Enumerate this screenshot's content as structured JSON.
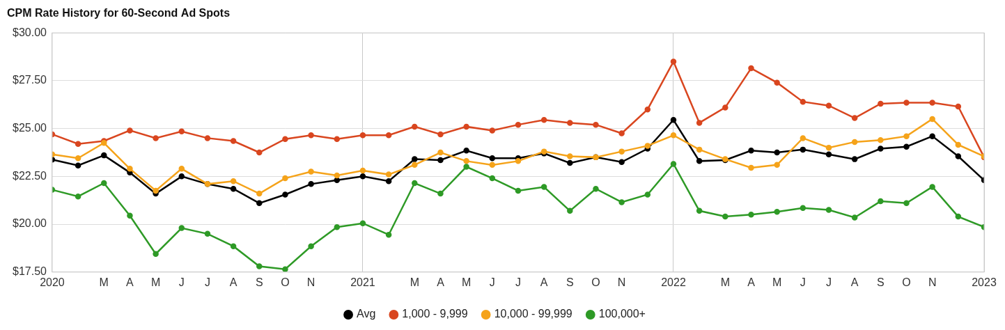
{
  "chart_data": {
    "type": "line",
    "title": "CPM Rate History for 60-Second Ad Spots",
    "categories": [
      "2020",
      null,
      "M",
      "A",
      "M",
      "J",
      "J",
      "A",
      "S",
      "O",
      "N",
      null,
      "2021",
      null,
      "M",
      "A",
      "M",
      "J",
      "J",
      "A",
      "S",
      "O",
      "N",
      null,
      "2022",
      null,
      "M",
      "A",
      "M",
      "J",
      "J",
      "A",
      "S",
      "O",
      "N",
      null,
      "2023"
    ],
    "series": [
      {
        "name": "Avg",
        "color": "#000000",
        "marker": "circle",
        "values": [
          23.38,
          23.07,
          23.6,
          22.7,
          21.6,
          22.5,
          22.1,
          21.85,
          21.1,
          21.55,
          22.1,
          22.3,
          22.5,
          22.25,
          23.4,
          23.35,
          23.85,
          23.45,
          23.45,
          23.7,
          23.2,
          23.5,
          23.25,
          23.95,
          25.45,
          23.3,
          23.35,
          23.85,
          23.75,
          23.9,
          23.65,
          23.4,
          23.95,
          24.05,
          24.6,
          23.55,
          22.3
        ]
      },
      {
        "name": "1,000 - 9,999",
        "color": "#d9461f",
        "marker": "circle",
        "values": [
          24.7,
          24.2,
          24.35,
          24.9,
          24.5,
          24.85,
          24.5,
          24.35,
          23.75,
          24.45,
          24.65,
          24.45,
          24.65,
          24.65,
          25.1,
          24.7,
          25.1,
          24.9,
          25.2,
          25.45,
          25.3,
          25.2,
          24.75,
          26.0,
          28.5,
          25.3,
          26.1,
          28.15,
          27.4,
          26.4,
          26.2,
          25.55,
          26.3,
          26.35,
          26.35,
          26.15,
          23.5
        ]
      },
      {
        "name": "10,000 - 99,999",
        "color": "#f5a31a",
        "marker": "circle",
        "values": [
          23.65,
          23.45,
          24.25,
          22.9,
          21.75,
          22.9,
          22.1,
          22.25,
          21.6,
          22.4,
          22.75,
          22.55,
          22.8,
          22.6,
          23.1,
          23.75,
          23.3,
          23.1,
          23.3,
          23.8,
          23.55,
          23.5,
          23.8,
          24.1,
          24.65,
          23.9,
          23.4,
          22.95,
          23.1,
          24.5,
          24.0,
          24.3,
          24.4,
          24.6,
          25.5,
          24.15,
          23.55
        ]
      },
      {
        "name": "100,000+",
        "color": "#2e9a26",
        "marker": "circle",
        "values": [
          21.8,
          21.45,
          22.15,
          20.45,
          18.45,
          19.8,
          19.5,
          18.85,
          17.8,
          17.65,
          18.85,
          19.85,
          20.05,
          19.45,
          22.15,
          21.6,
          23.0,
          22.4,
          21.75,
          21.95,
          20.7,
          21.85,
          21.15,
          21.55,
          23.15,
          20.7,
          20.4,
          20.5,
          20.65,
          20.85,
          20.75,
          20.35,
          21.2,
          21.1,
          21.95,
          20.4,
          19.85
        ]
      }
    ],
    "ylim": [
      17.5,
      30
    ],
    "yticks": [
      {
        "value": 17.5,
        "label": "$17.50"
      },
      {
        "value": 20,
        "label": "$20.00"
      },
      {
        "value": 22.5,
        "label": "$22.50"
      },
      {
        "value": 25,
        "label": "$25.00"
      },
      {
        "value": 27.5,
        "label": "$27.50"
      },
      {
        "value": 30,
        "label": "$30.00"
      }
    ],
    "grid": true,
    "legend": "bottom"
  }
}
